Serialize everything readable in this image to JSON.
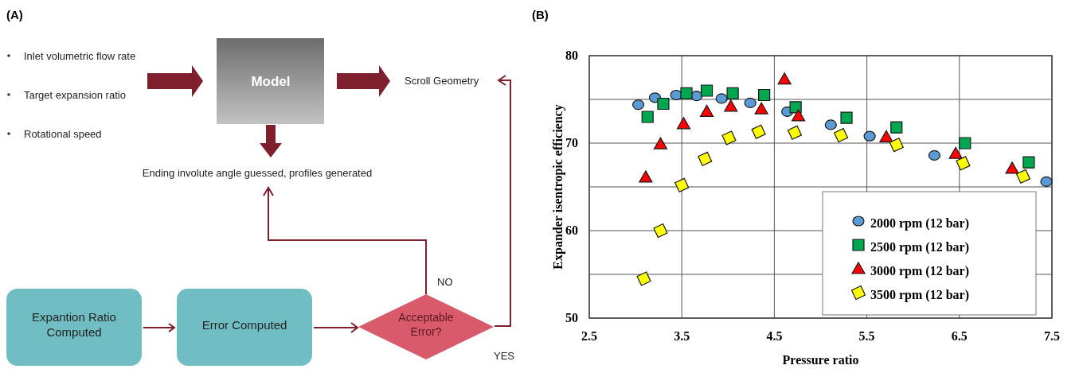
{
  "chart_data": [
    {
      "type": "other",
      "title": "(A)",
      "annotations": [
        "Inlet volumetric flow rate",
        "Target expansion ratio",
        "Rotational speed",
        "Model",
        "Scroll Geometry",
        "Ending involute angle guessed, profiles generated",
        "NO",
        "Expantion Ratio Computed",
        "Error Computed",
        "Acceptable Error?",
        "YES"
      ]
    },
    {
      "type": "scatter",
      "title": "(B)",
      "xlabel": "Pressure ratio",
      "ylabel": "Expander isentropic efficiency",
      "xlim": [
        2.5,
        7.5
      ],
      "xticks": [
        2.5,
        3.5,
        4.5,
        5.5,
        6.5,
        7.5
      ],
      "ylim": [
        50,
        80
      ],
      "yticks": [
        50,
        {
          "value": 55,
          "label": null
        },
        60,
        {
          "value": 65,
          "label": null
        },
        70,
        {
          "value": 75,
          "label": null
        },
        80
      ],
      "grid": true,
      "legend": "bottom right",
      "series": [
        {
          "name": "2000 rpm (12 bar)",
          "color": "#5b9bd5",
          "marker": "circle",
          "x": [
            3.03,
            3.21,
            3.44,
            3.66,
            3.93,
            4.24,
            4.64,
            5.11,
            5.53,
            6.23,
            7.44
          ],
          "values": [
            74.4,
            75.2,
            75.5,
            75.4,
            75.1,
            74.6,
            73.6,
            72.1,
            70.8,
            68.6,
            65.6
          ]
        },
        {
          "name": "2500 rpm (12 bar)",
          "color": "#00a650",
          "marker": "square",
          "x": [
            3.13,
            3.3,
            3.55,
            3.77,
            4.05,
            4.39,
            4.73,
            5.28,
            5.82,
            6.56,
            7.25
          ],
          "values": [
            73.0,
            74.5,
            75.7,
            76.0,
            75.7,
            75.5,
            74.1,
            72.9,
            71.8,
            70.0,
            67.8
          ]
        },
        {
          "name": "3000 rpm (12 bar)",
          "color": "#ff0000",
          "marker": "triangle",
          "x": [
            3.11,
            3.27,
            3.52,
            3.77,
            4.03,
            4.36,
            4.61,
            4.76,
            5.71,
            6.46,
            7.07
          ],
          "values": [
            66.1,
            69.9,
            72.2,
            73.6,
            74.2,
            73.9,
            77.3,
            73.1,
            70.7,
            68.8,
            67.1
          ]
        },
        {
          "name": "3500 rpm (12 bar)",
          "color": "#ffff00",
          "marker": "diamond",
          "x": [
            3.09,
            3.27,
            3.5,
            3.75,
            4.01,
            4.33,
            4.72,
            5.22,
            5.82,
            6.54,
            7.19
          ],
          "values": [
            54.5,
            60.0,
            65.2,
            68.2,
            70.6,
            71.3,
            71.2,
            70.9,
            69.8,
            67.7,
            66.2
          ]
        }
      ]
    }
  ]
}
